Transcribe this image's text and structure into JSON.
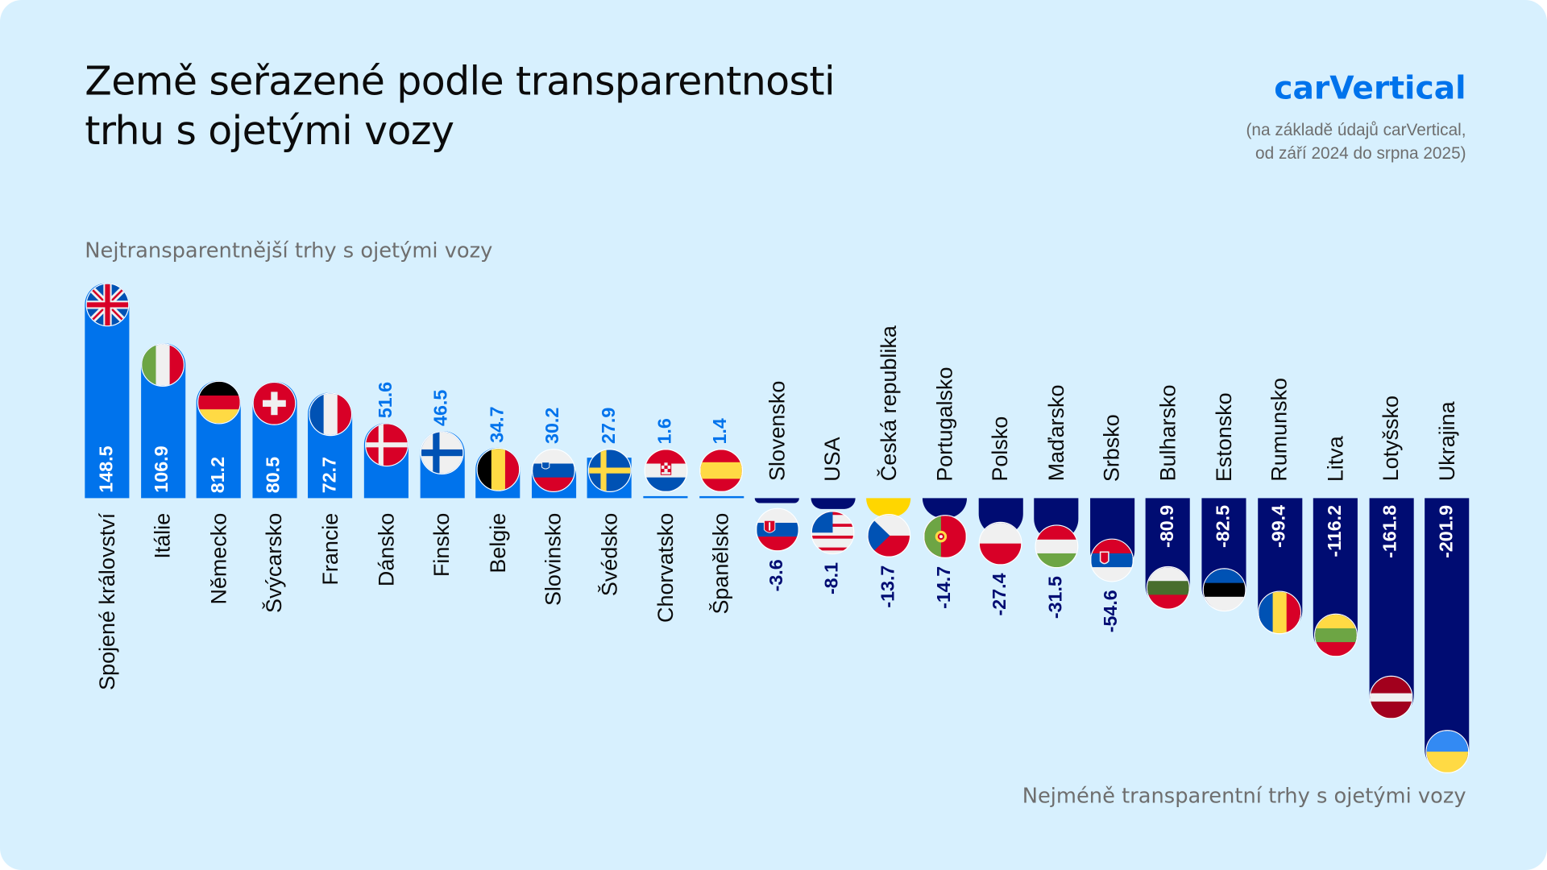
{
  "header": {
    "title_line1": "Země seřazené podle transparentnosti",
    "title_line2": "trhu s ojetými vozy",
    "logo": "carVertical",
    "source_line1": "(na základě údajů carVertical,",
    "source_line2": "od září 2024 do srpna 2025)"
  },
  "colors": {
    "background": "#d7f0fe",
    "positive": "#0073ec",
    "negative": "#000c72",
    "highlight": "#ffd600"
  },
  "chart_data": {
    "type": "bar",
    "orientation": "vertical",
    "top_label": "Nejtransparentnější trhy s ojetými vozy",
    "bottom_label": "Nejméně transparentní trhy s ojetými vozy",
    "grid": false,
    "categories": [
      "Spojené království",
      "Itálie",
      "Německo",
      "Švýcarsko",
      "Francie",
      "Dánsko",
      "Finsko",
      "Belgie",
      "Slovinsko",
      "Švédsko",
      "Chorvatsko",
      "Španělsko",
      "Slovensko",
      "USA",
      "Česká republika",
      "Portugalsko",
      "Polsko",
      "Maďarsko",
      "Srbsko",
      "Bulharsko",
      "Estonsko",
      "Rumunsko",
      "Litva",
      "Lotyšsko",
      "Ukrajina"
    ],
    "values": [
      148.5,
      106.9,
      81.2,
      80.5,
      72.7,
      51.6,
      46.5,
      34.7,
      30.2,
      27.9,
      1.6,
      1.4,
      -3.6,
      -8.1,
      -13.7,
      -14.7,
      -27.4,
      -31.5,
      -54.6,
      -80.9,
      -82.5,
      -99.4,
      -116.2,
      -161.8,
      -201.9
    ],
    "value_labels": [
      "148.5",
      "106.9",
      "81.2",
      "80.5",
      "72.7",
      "51.6",
      "46.5",
      "34.7",
      "30.2",
      "27.9",
      "1.6",
      "1.4",
      "-3.6",
      "-8.1",
      "-13.7",
      "-14.7",
      "-27.4",
      "-31.5",
      "-54.6",
      "-80.9",
      "-82.5",
      "-99.4",
      "-116.2",
      "-161.8",
      "-201.9"
    ],
    "flag_icons": [
      "gb",
      "it",
      "de",
      "ch",
      "fr",
      "dk",
      "fi",
      "be",
      "si",
      "se",
      "hr",
      "es",
      "sk",
      "us",
      "cz",
      "pt",
      "pl",
      "hu",
      "rs",
      "bg",
      "ee",
      "ro",
      "lt",
      "lv",
      "ua"
    ],
    "highlighted_category": "Česká republika"
  }
}
